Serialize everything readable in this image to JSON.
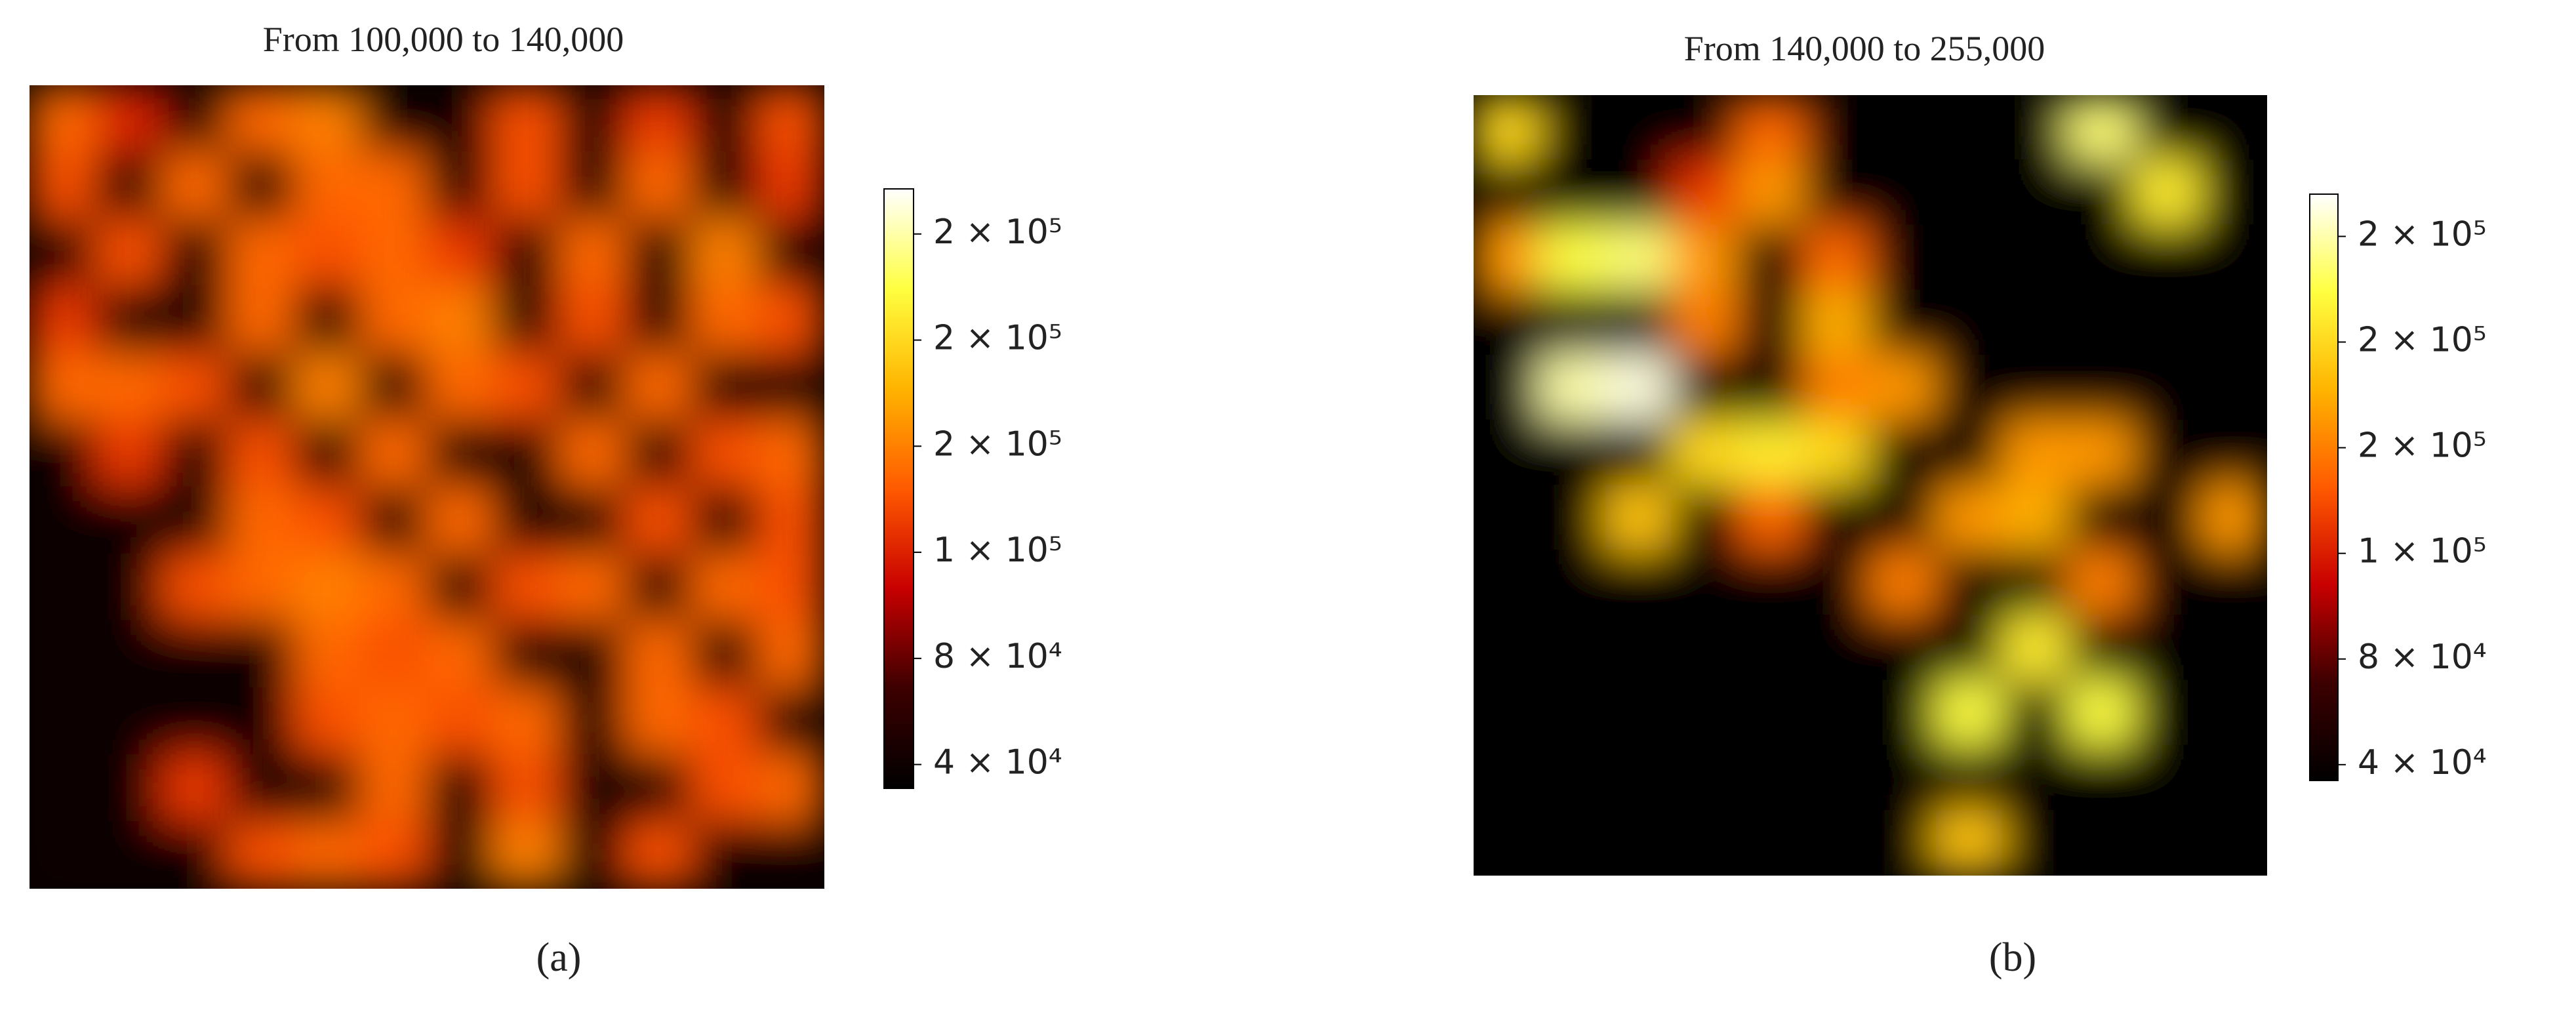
{
  "chart_data": [
    {
      "type": "heatmap",
      "title": "From 100,000 to 140,000",
      "caption": "(a)",
      "colorscale": [
        "#000000",
        "#3c0000",
        "#c80000",
        "#ff5a00",
        "#ffb400",
        "#ffff40",
        "#ffffff"
      ],
      "clim": [
        31000,
        257000
      ],
      "cticks": [
        {
          "value": 40000,
          "label": "4 × 10⁴"
        },
        {
          "value": 80000,
          "label": "8 × 10⁴"
        },
        {
          "value": 120000,
          "label": "1 × 10⁵"
        },
        {
          "value": 160000,
          "label": "2 × 10⁵"
        },
        {
          "value": 200000,
          "label": "2 × 10⁵"
        },
        {
          "value": 240000,
          "label": "2 × 10⁵"
        }
      ],
      "values": [
        [
          150000,
          120000,
          40000,
          150000,
          160000,
          40000,
          40000,
          140000,
          40000,
          130000,
          40000,
          140000
        ],
        [
          140000,
          40000,
          150000,
          40000,
          150000,
          150000,
          40000,
          140000,
          40000,
          150000,
          40000,
          130000
        ],
        [
          40000,
          140000,
          40000,
          150000,
          140000,
          150000,
          130000,
          40000,
          150000,
          40000,
          160000,
          40000
        ],
        [
          130000,
          40000,
          40000,
          150000,
          40000,
          150000,
          160000,
          40000,
          140000,
          40000,
          150000,
          140000
        ],
        [
          150000,
          150000,
          140000,
          40000,
          160000,
          40000,
          150000,
          140000,
          40000,
          150000,
          40000,
          40000
        ],
        [
          40000,
          130000,
          40000,
          140000,
          40000,
          150000,
          40000,
          40000,
          150000,
          40000,
          140000,
          150000
        ],
        [
          40000,
          40000,
          40000,
          150000,
          140000,
          40000,
          150000,
          40000,
          40000,
          140000,
          40000,
          140000
        ],
        [
          40000,
          40000,
          140000,
          150000,
          160000,
          150000,
          40000,
          140000,
          150000,
          40000,
          150000,
          140000
        ],
        [
          40000,
          40000,
          40000,
          40000,
          150000,
          140000,
          150000,
          40000,
          40000,
          150000,
          40000,
          150000
        ],
        [
          40000,
          40000,
          40000,
          40000,
          140000,
          150000,
          140000,
          150000,
          40000,
          150000,
          140000,
          40000
        ],
        [
          40000,
          40000,
          130000,
          40000,
          40000,
          150000,
          40000,
          140000,
          40000,
          40000,
          140000,
          150000
        ],
        [
          40000,
          40000,
          40000,
          140000,
          150000,
          140000,
          40000,
          160000,
          40000,
          140000,
          40000,
          40000
        ]
      ]
    },
    {
      "type": "heatmap",
      "title": "From 140,000 to 255,000",
      "caption": "(b)",
      "colorscale": [
        "#000000",
        "#3c0000",
        "#c80000",
        "#ff5a00",
        "#ffb400",
        "#ffff40",
        "#ffffff"
      ],
      "clim": [
        34000,
        256000
      ],
      "cticks": [
        {
          "value": 40000,
          "label": "4 × 10⁴"
        },
        {
          "value": 80000,
          "label": "8 × 10⁴"
        },
        {
          "value": 120000,
          "label": "1 × 10⁵"
        },
        {
          "value": 160000,
          "label": "2 × 10⁵"
        },
        {
          "value": 200000,
          "label": "2 × 10⁵"
        },
        {
          "value": 240000,
          "label": "2 × 10⁵"
        }
      ],
      "values": [
        [
          200000,
          35000,
          35000,
          35000,
          150000,
          35000,
          35000,
          35000,
          35000,
          230000,
          35000,
          35000
        ],
        [
          35000,
          35000,
          35000,
          130000,
          170000,
          35000,
          35000,
          35000,
          35000,
          35000,
          210000,
          35000
        ],
        [
          170000,
          220000,
          230000,
          170000,
          35000,
          150000,
          35000,
          35000,
          35000,
          35000,
          35000,
          35000
        ],
        [
          35000,
          35000,
          35000,
          160000,
          35000,
          180000,
          35000,
          35000,
          35000,
          35000,
          35000,
          35000
        ],
        [
          35000,
          240000,
          250000,
          35000,
          35000,
          160000,
          170000,
          35000,
          35000,
          35000,
          35000,
          35000
        ],
        [
          35000,
          35000,
          35000,
          200000,
          210000,
          200000,
          35000,
          35000,
          170000,
          170000,
          35000,
          35000
        ],
        [
          35000,
          35000,
          190000,
          35000,
          150000,
          35000,
          35000,
          170000,
          180000,
          35000,
          35000,
          170000
        ],
        [
          35000,
          35000,
          35000,
          35000,
          35000,
          35000,
          160000,
          35000,
          35000,
          160000,
          35000,
          35000
        ],
        [
          35000,
          35000,
          35000,
          35000,
          35000,
          35000,
          35000,
          35000,
          210000,
          35000,
          35000,
          35000
        ],
        [
          35000,
          35000,
          35000,
          35000,
          35000,
          35000,
          35000,
          220000,
          35000,
          220000,
          35000,
          35000
        ],
        [
          35000,
          35000,
          35000,
          35000,
          35000,
          35000,
          35000,
          35000,
          35000,
          35000,
          35000,
          35000
        ],
        [
          35000,
          35000,
          35000,
          35000,
          35000,
          35000,
          35000,
          190000,
          35000,
          35000,
          35000,
          35000
        ]
      ]
    }
  ]
}
